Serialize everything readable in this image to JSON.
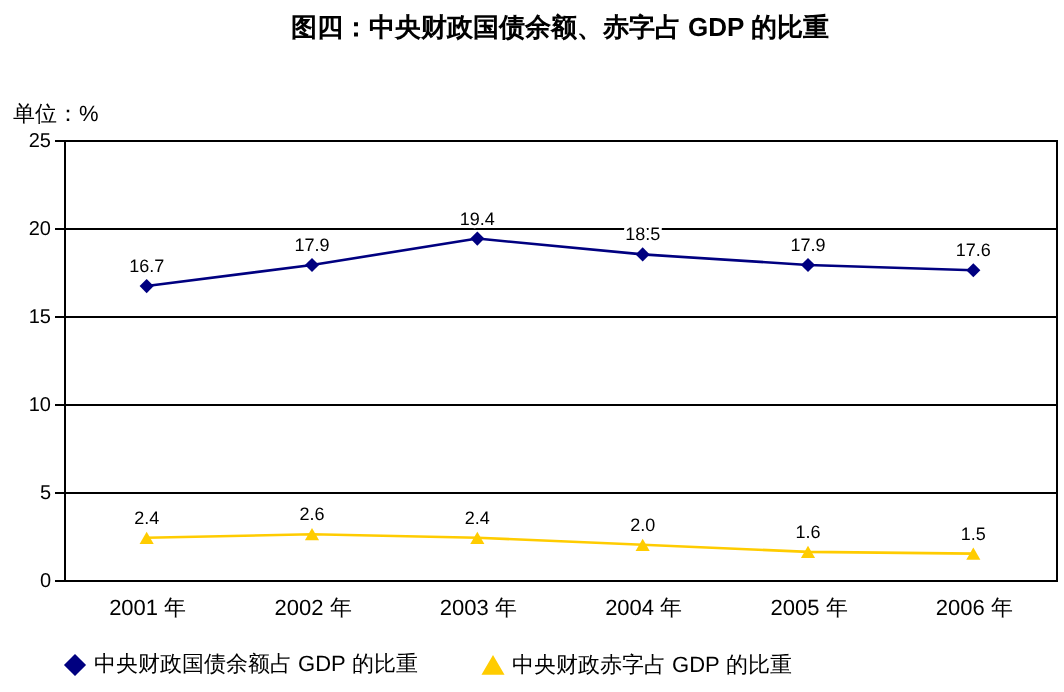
{
  "chart_data": {
    "type": "line",
    "title": "图四：中央财政国债余额、赤字占 GDP 的比重",
    "ylabel": "单位：%",
    "categories": [
      "2001 年",
      "2002 年",
      "2003 年",
      "2004 年",
      "2005 年",
      "2006 年"
    ],
    "series": [
      {
        "name": "中央财政国债余额占 GDP 的比重",
        "color": "#000080",
        "marker": "diamond",
        "values": [
          16.7,
          17.9,
          19.4,
          18.5,
          17.9,
          17.6
        ],
        "value_labels": [
          "16.7",
          "17.9",
          "19.4",
          "18.5",
          "17.9",
          "17.6"
        ]
      },
      {
        "name": "中央财政赤字占 GDP 的比重",
        "color": "#ffcc00",
        "marker": "triangle",
        "values": [
          2.4,
          2.6,
          2.4,
          2.0,
          1.6,
          1.5
        ],
        "value_labels": [
          "2.4",
          "2.6",
          "2.4",
          "2.0",
          "1.6",
          "1.5"
        ]
      }
    ],
    "ylim": [
      0,
      25
    ],
    "yticks": [
      0,
      5,
      10,
      15,
      20,
      25
    ],
    "grid": "y",
    "legend": "bottom"
  }
}
